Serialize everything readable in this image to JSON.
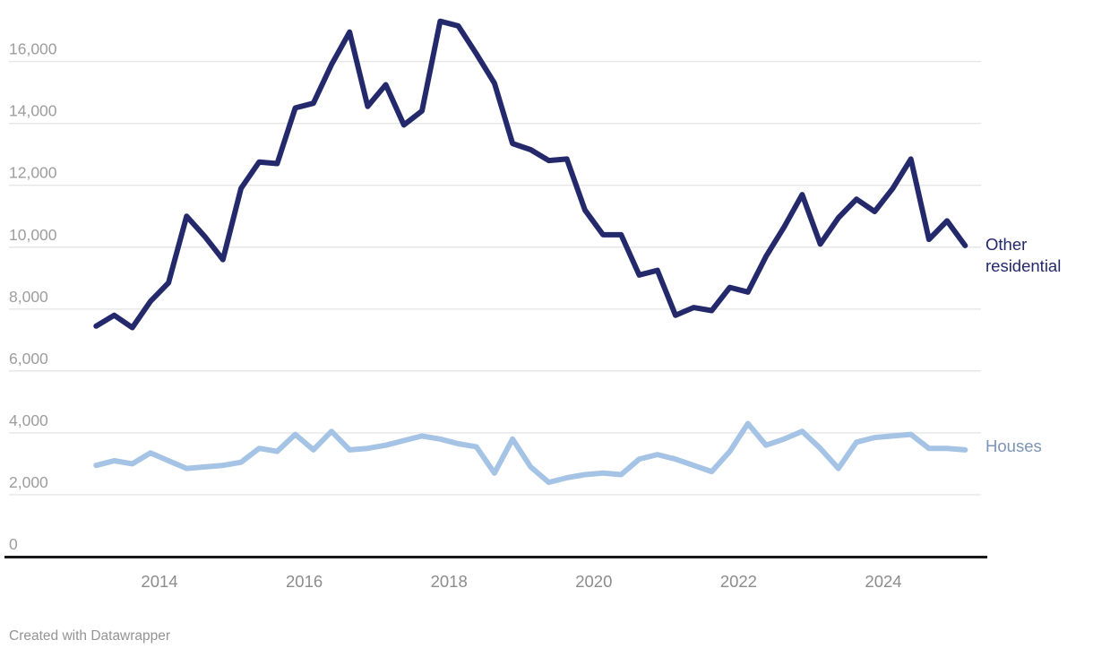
{
  "chart_data": {
    "type": "line",
    "title": "",
    "xlabel": "",
    "ylabel": "",
    "x_unit": "quarterly",
    "quarters": [
      "2013 Q1",
      "2013 Q2",
      "2013 Q3",
      "2013 Q4",
      "2014 Q1",
      "2014 Q2",
      "2014 Q3",
      "2014 Q4",
      "2015 Q1",
      "2015 Q2",
      "2015 Q3",
      "2015 Q4",
      "2016 Q1",
      "2016 Q2",
      "2016 Q3",
      "2016 Q4",
      "2017 Q1",
      "2017 Q2",
      "2017 Q3",
      "2017 Q4",
      "2018 Q1",
      "2018 Q2",
      "2018 Q3",
      "2018 Q4",
      "2019 Q1",
      "2019 Q2",
      "2019 Q3",
      "2019 Q4",
      "2020 Q1",
      "2020 Q2",
      "2020 Q3",
      "2020 Q4",
      "2021 Q1",
      "2021 Q2",
      "2021 Q3",
      "2021 Q4",
      "2022 Q1",
      "2022 Q2",
      "2022 Q3",
      "2022 Q4",
      "2023 Q1",
      "2023 Q2",
      "2023 Q3",
      "2023 Q4",
      "2024 Q1",
      "2024 Q2",
      "2024 Q3",
      "2024 Q4",
      "2025 Q1"
    ],
    "series": [
      {
        "name": "Other residential",
        "color": "#24296B",
        "label_color": "#23286B",
        "values": [
          7450,
          7800,
          7400,
          8250,
          8850,
          11000,
          10350,
          9600,
          11900,
          12750,
          12700,
          14500,
          14650,
          15900,
          16950,
          14550,
          15250,
          13950,
          14400,
          17300,
          17150,
          16250,
          15300,
          13350,
          13150,
          12800,
          12850,
          11200,
          10400,
          10400,
          9100,
          9250,
          7800,
          8050,
          7950,
          8700,
          8550,
          9700,
          10650,
          11700,
          10100,
          10950,
          11550,
          11150,
          11900,
          12850,
          10250,
          10850,
          10050
        ]
      },
      {
        "name": "Houses",
        "color": "#A5C3E4",
        "label_color": "#7C94B5",
        "values": [
          2950,
          3100,
          3000,
          3350,
          3100,
          2850,
          2900,
          2950,
          3050,
          3500,
          3400,
          3950,
          3450,
          4050,
          3450,
          3500,
          3600,
          3750,
          3900,
          3800,
          3650,
          3550,
          2700,
          3800,
          2900,
          2400,
          2550,
          2650,
          2700,
          2650,
          3150,
          3300,
          3150,
          2950,
          2750,
          3400,
          4300,
          3600,
          3800,
          4050,
          3500,
          2850,
          3700,
          3850,
          3900,
          3950,
          3500,
          3500,
          3450
        ]
      }
    ],
    "ylim": [
      0,
      17500
    ],
    "y_ticks": [
      0,
      2000,
      4000,
      6000,
      8000,
      10000,
      12000,
      14000,
      16000
    ],
    "x_tick_years": [
      2014,
      2016,
      2018,
      2020,
      2022,
      2024
    ],
    "grid": "horizontal",
    "legend_position": "direct-right"
  },
  "labels": {
    "other_line1": "Other",
    "other_line2": "residential",
    "houses": "Houses"
  },
  "colors": {
    "gridline": "#e6e6e6",
    "axis_line": "#18181b",
    "y_tick_text": "#9d9d9d",
    "x_tick_text": "#8c8c8c",
    "footer_text": "#949494",
    "background": "#ffffff"
  },
  "footer": {
    "credit": "Created with Datawrapper"
  }
}
